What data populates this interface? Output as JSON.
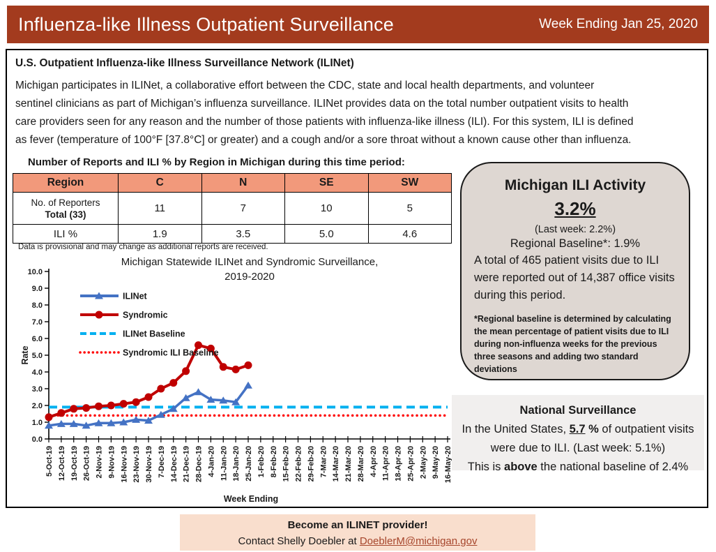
{
  "header": {
    "title": "Influenza-like Illness Outpatient Surveillance",
    "week_ending": "Week Ending Jan 25, 2020"
  },
  "ilinet": {
    "heading": "U.S. Outpatient Influenza-like Illness Surveillance Network (ILINet)",
    "description_lines": [
      "Michigan participates in ILINet, a collaborative effort between the CDC, state and local health departments, and volunteer",
      "sentinel clinicians as part of Michigan’s influenza surveillance. ILINet provides data on the total number outpatient visits to health",
      "care providers seen for any reason and the number of those patients with influenza-like illness (ILI). For this system, ILI is defined",
      "as fever (temperature of 100°F [37.8°C] or greater) and a cough and/or a sore throat without a known cause other than influenza."
    ]
  },
  "region_table": {
    "title": "Number of Reports and ILI % by Region in Michigan during this time period:",
    "header": [
      "Region",
      "C",
      "N",
      "SE",
      "SW"
    ],
    "reporters_label_line1": "No. of Reporters",
    "reporters_label_line2": "Total (33)",
    "reporters": [
      "11",
      "7",
      "10",
      "5"
    ],
    "ili_label": "ILI %",
    "ili": [
      "1.9",
      "3.5",
      "5.0",
      "4.6"
    ],
    "note": "Data is provisional and may change as additional reports are received."
  },
  "chart_data": {
    "type": "line",
    "title": "Michigan Statewide ILINet and Syndromic Surveillance,",
    "title_line2": "2019-2020",
    "xlabel": "Week Ending",
    "ylabel": "Rate",
    "ylim": [
      0,
      10
    ],
    "ytick_step": 1,
    "grid": false,
    "legend_position": "top-left",
    "categories": [
      "5-Oct-19",
      "12-Oct-19",
      "19-Oct-19",
      "26-Oct-19",
      "2-Nov-19",
      "9-Nov-19",
      "16-Nov-19",
      "23-Nov-19",
      "30-Nov-19",
      "7-Dec-19",
      "14-Dec-19",
      "21-Dec-19",
      "28-Dec-19",
      "4-Jan-20",
      "11-Jan-20",
      "18-Jan-20",
      "25-Jan-20",
      "1-Feb-20",
      "8-Feb-20",
      "15-Feb-20",
      "22-Feb-20",
      "29-Feb-20",
      "7-Mar-20",
      "14-Mar-20",
      "21-Mar-20",
      "28-Mar-20",
      "4-Apr-20",
      "11-Apr-20",
      "18-Apr-20",
      "25-Apr-20",
      "2-May-20",
      "9-May-20",
      "16-May-20"
    ],
    "series": [
      {
        "name": "ILINet",
        "color": "#4472C4",
        "marker": "triangle",
        "values": [
          0.8,
          0.9,
          0.9,
          0.8,
          0.95,
          0.95,
          1.0,
          1.15,
          1.1,
          1.45,
          1.8,
          2.45,
          2.8,
          2.35,
          2.3,
          2.2,
          3.2
        ]
      },
      {
        "name": "Syndromic",
        "color": "#C00000",
        "marker": "circle",
        "values": [
          1.3,
          1.55,
          1.8,
          1.85,
          1.95,
          2.0,
          2.1,
          2.2,
          2.5,
          3.0,
          3.35,
          4.05,
          5.6,
          5.4,
          4.3,
          4.15,
          4.4
        ]
      }
    ],
    "baselines": [
      {
        "name": "ILINet Baseline",
        "color": "#00B0F0",
        "style": "dashed",
        "value": 1.9
      },
      {
        "name": "Syndromic ILI Baseline",
        "color": "#FF0000",
        "style": "dotted",
        "value": 1.4
      }
    ]
  },
  "activity_box": {
    "title": "Michigan ILI Activity",
    "value": "3.2%",
    "last_week": "(Last week: 2.2%)",
    "regional_baseline": "Regional Baseline*: 1.9%",
    "summary": "A total of 465 patient visits due to ILI were reported out of 14,387 office visits during this period.",
    "footnote": "*Regional baseline is determined by calculating the mean percentage of patient visits due to ILI during non-influenza weeks for the previous three seasons and adding two standard deviations"
  },
  "national_box": {
    "title": "National Surveillance",
    "line1_pre": "In the United States, ",
    "line1_value": "5.7",
    "line1_unit": " % ",
    "line1_post": "of outpatient visits were due to ILI. (Last week: 5.1%)",
    "line2_pre": "This is ",
    "line2_bold": "above",
    "line2_post": " the national baseline of 2.4%"
  },
  "footer": {
    "line1": "Become an ILINET provider!",
    "line2_pre": "Contact Shelly Doebler at ",
    "link": "DoeblerM@michigan.gov"
  },
  "colors": {
    "header_bg": "#A33B1E",
    "header_text": "#FFFFFF",
    "table_header_bg": "#F2997B",
    "activity_box_bg": "#DED7D2",
    "national_box_bg": "#F1EFEE",
    "footer_bg": "#F9DECD",
    "link": "#A6452B",
    "text": "#1A1A1A",
    "axis": "#000000"
  }
}
